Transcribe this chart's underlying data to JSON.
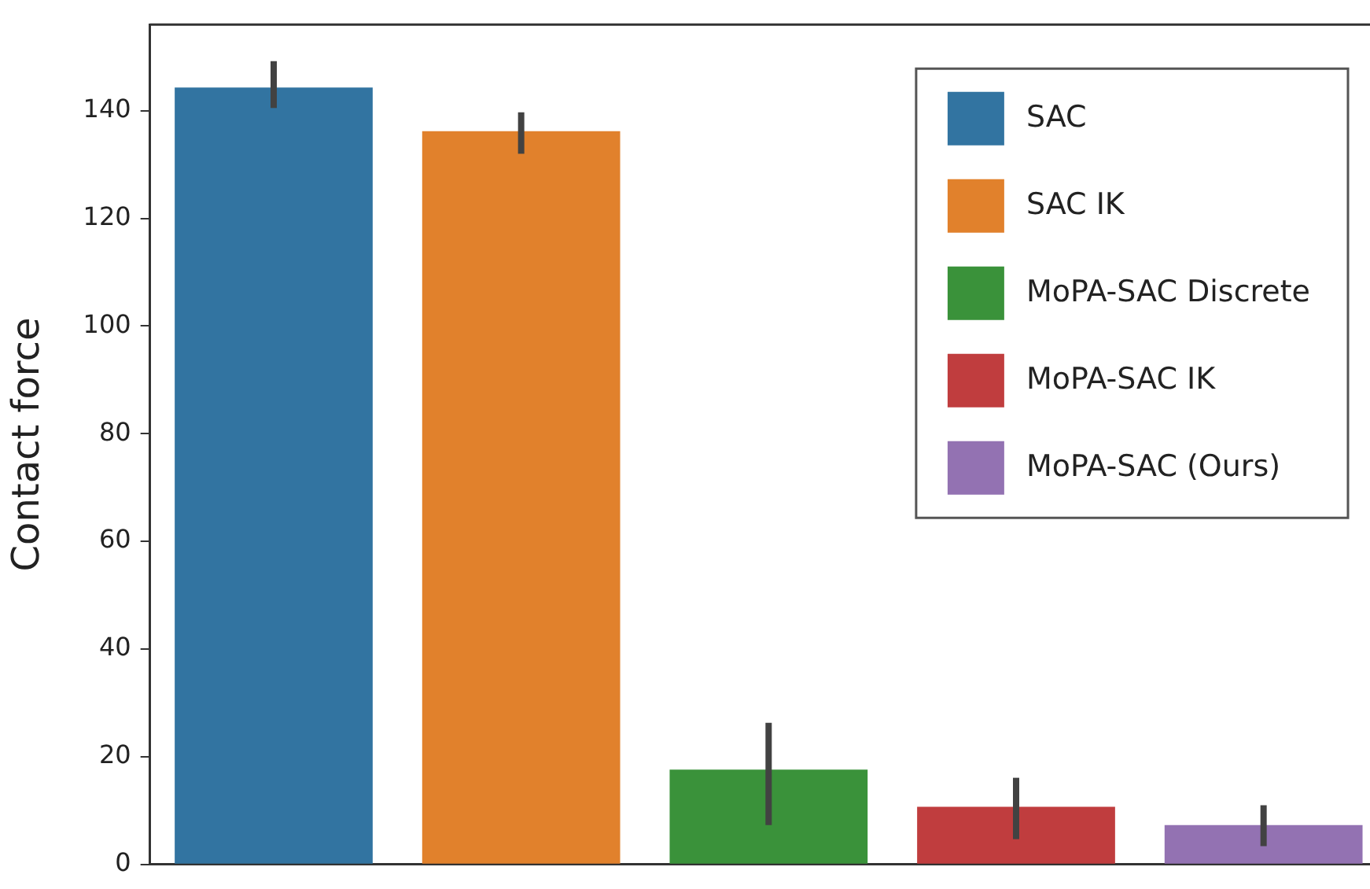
{
  "chart_data": {
    "type": "bar",
    "ylabel": "Contact force",
    "categories": [
      null,
      null,
      null,
      null,
      null
    ],
    "stacked": true,
    "series": [
      {
        "name": "SAC",
        "color": "#3274a1",
        "values": [
          144.3,
          null,
          null,
          null,
          null
        ],
        "errors": [
          [
            140.5,
            149.2
          ],
          null,
          null,
          null,
          null
        ]
      },
      {
        "name": "SAC IK",
        "color": "#e1812c",
        "values": [
          null,
          136.2,
          null,
          null,
          null
        ],
        "errors": [
          null,
          [
            132,
            139.7
          ],
          null,
          null,
          null
        ]
      },
      {
        "name": "MoPA-SAC Discrete",
        "color": "#3a923a",
        "values": [
          null,
          null,
          17.6,
          null,
          null
        ],
        "errors": [
          null,
          null,
          [
            7.3,
            26.3
          ],
          null,
          null
        ]
      },
      {
        "name": "MoPA-SAC IK",
        "color": "#c03d3e",
        "values": [
          null,
          null,
          null,
          10.7,
          null
        ],
        "errors": [
          null,
          null,
          null,
          [
            4.7,
            16.1
          ],
          null
        ]
      },
      {
        "name": "MoPA-SAC (Ours)",
        "color": "#9372b2",
        "values": [
          null,
          null,
          null,
          null,
          7.3
        ],
        "errors": [
          null,
          null,
          null,
          null,
          [
            3.4,
            11
          ]
        ]
      }
    ],
    "ylim": [
      0,
      156
    ],
    "yticks": [
      0,
      20,
      40,
      60,
      80,
      100,
      120,
      140
    ],
    "tick_labels": "y",
    "legend": "top right"
  }
}
